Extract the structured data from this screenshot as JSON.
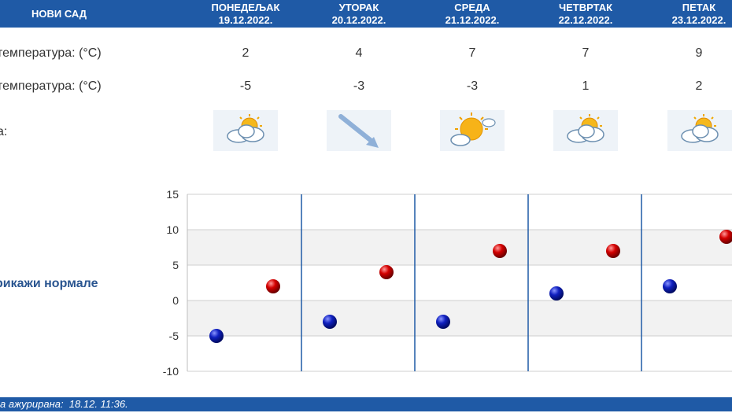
{
  "header": {
    "city": "НОВИ САД",
    "days": [
      {
        "name": "ПОНЕДЕЉАК",
        "date": "19.12.2022."
      },
      {
        "name": "УТОРАК",
        "date": "20.12.2022."
      },
      {
        "name": "СРЕДА",
        "date": "21.12.2022."
      },
      {
        "name": "ЧЕТВРТАК",
        "date": "22.12.2022."
      },
      {
        "name": "ПЕТАК",
        "date": "23.12.2022."
      }
    ]
  },
  "rows": {
    "max_label": "температура: (°C)",
    "min_label": "температура: (°C)",
    "weather_label": "а:",
    "max": [
      "2",
      "4",
      "7",
      "7",
      "9"
    ],
    "min": [
      "-5",
      "-3",
      "-3",
      "1",
      "2"
    ],
    "icons": [
      "partly-cloudy-icon",
      "wind-arrow-icon",
      "sun-cloud-icon",
      "partly-cloudy-icon",
      "partly-cloudy-icon"
    ]
  },
  "normals_link": "рикажи нормале",
  "footer": "а ажурирана:  18.12. 11:36.",
  "colors": {
    "header": "#1f5aa6",
    "max_marker": "#cc0000",
    "min_marker": "#0a1fa8"
  },
  "chart_data": {
    "type": "scatter",
    "categories": [
      "19.12.2022.",
      "20.12.2022.",
      "21.12.2022.",
      "22.12.2022.",
      "23.12.2022."
    ],
    "series": [
      {
        "values": [
          -5,
          -3,
          -3,
          1,
          2
        ]
      },
      {
        "values": [
          2,
          4,
          7,
          7,
          9
        ]
      }
    ],
    "yticks": [
      15,
      10,
      5,
      0,
      -5,
      -10
    ],
    "ylim": [
      -10,
      15
    ],
    "grid": true
  }
}
